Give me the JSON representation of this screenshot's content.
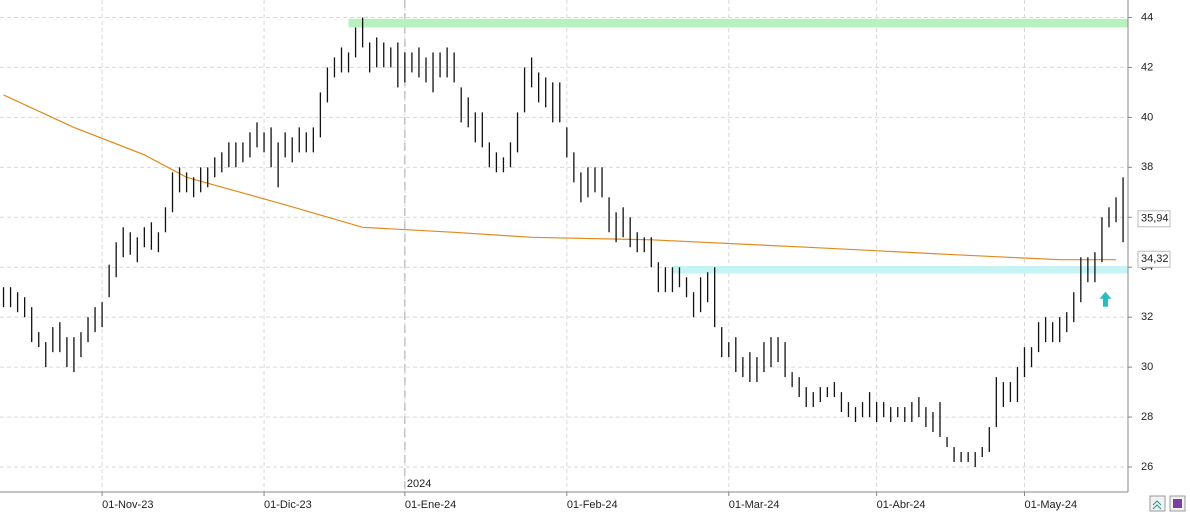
{
  "chart_data": {
    "type": "ohlc",
    "bars": [
      [
        33.2,
        32.4
      ],
      [
        33.2,
        32.4
      ],
      [
        33.0,
        32.2
      ],
      [
        32.8,
        32.0
      ],
      [
        32.4,
        31.0
      ],
      [
        31.4,
        30.8
      ],
      [
        31.0,
        30.0
      ],
      [
        31.6,
        30.6
      ],
      [
        31.8,
        30.6
      ],
      [
        31.2,
        30.0
      ],
      [
        31.2,
        29.8
      ],
      [
        31.4,
        30.4
      ],
      [
        32.0,
        31.0
      ],
      [
        32.4,
        31.4
      ],
      [
        32.6,
        31.6
      ],
      [
        34.1,
        32.8
      ],
      [
        35.0,
        33.6
      ],
      [
        35.6,
        34.4
      ],
      [
        35.4,
        34.5
      ],
      [
        35.2,
        34.2
      ],
      [
        35.6,
        34.8
      ],
      [
        35.8,
        34.7
      ],
      [
        35.4,
        34.6
      ],
      [
        36.4,
        35.4
      ],
      [
        37.8,
        36.2
      ],
      [
        38.0,
        37.0
      ],
      [
        37.8,
        37.0
      ],
      [
        37.6,
        36.8
      ],
      [
        38.0,
        37.0
      ],
      [
        38.0,
        37.2
      ],
      [
        38.4,
        37.6
      ],
      [
        38.6,
        37.8
      ],
      [
        39.0,
        38.0
      ],
      [
        39.0,
        38.0
      ],
      [
        39.0,
        38.2
      ],
      [
        39.4,
        38.4
      ],
      [
        39.8,
        38.8
      ],
      [
        39.4,
        38.6
      ],
      [
        39.6,
        38.0
      ],
      [
        39.0,
        37.2
      ],
      [
        39.4,
        38.4
      ],
      [
        39.2,
        38.2
      ],
      [
        39.6,
        38.6
      ],
      [
        39.4,
        38.6
      ],
      [
        39.6,
        38.6
      ],
      [
        41.0,
        39.2
      ],
      [
        42.0,
        40.6
      ],
      [
        42.4,
        41.6
      ],
      [
        42.8,
        41.8
      ],
      [
        42.6,
        41.8
      ],
      [
        43.6,
        42.4
      ],
      [
        44.0,
        42.8
      ],
      [
        43.0,
        41.8
      ],
      [
        43.2,
        42.0
      ],
      [
        43.0,
        42.0
      ],
      [
        42.8,
        42.0
      ],
      [
        43.0,
        41.2
      ],
      [
        42.6,
        41.4
      ],
      [
        42.6,
        41.8
      ],
      [
        42.8,
        41.6
      ],
      [
        42.4,
        41.4
      ],
      [
        42.6,
        41.0
      ],
      [
        42.6,
        41.6
      ],
      [
        42.8,
        41.6
      ],
      [
        42.6,
        41.4
      ],
      [
        41.2,
        39.8
      ],
      [
        40.8,
        39.6
      ],
      [
        40.2,
        39.0
      ],
      [
        40.2,
        38.8
      ],
      [
        39.0,
        38.0
      ],
      [
        38.6,
        37.8
      ],
      [
        38.4,
        37.8
      ],
      [
        39.0,
        38.0
      ],
      [
        40.2,
        38.6
      ],
      [
        42.0,
        40.2
      ],
      [
        42.4,
        41.2
      ],
      [
        41.8,
        40.6
      ],
      [
        41.6,
        40.4
      ],
      [
        41.4,
        39.8
      ],
      [
        41.4,
        39.8
      ],
      [
        39.6,
        38.4
      ],
      [
        38.6,
        37.4
      ],
      [
        37.8,
        36.6
      ],
      [
        38.0,
        36.8
      ],
      [
        38.0,
        37.0
      ],
      [
        38.0,
        36.8
      ],
      [
        36.8,
        35.4
      ],
      [
        36.2,
        35.0
      ],
      [
        36.4,
        35.2
      ],
      [
        36.0,
        34.8
      ],
      [
        35.4,
        34.6
      ],
      [
        35.2,
        34.6
      ],
      [
        35.2,
        34.0
      ],
      [
        34.2,
        33.0
      ],
      [
        34.0,
        33.0
      ],
      [
        34.0,
        33.0
      ],
      [
        34.0,
        33.2
      ],
      [
        33.6,
        32.8
      ],
      [
        33.0,
        32.0
      ],
      [
        33.6,
        32.2
      ],
      [
        33.8,
        32.6
      ],
      [
        34.0,
        31.6
      ],
      [
        31.6,
        30.4
      ],
      [
        31.0,
        30.4
      ],
      [
        31.2,
        29.8
      ],
      [
        30.4,
        29.6
      ],
      [
        30.6,
        29.4
      ],
      [
        30.4,
        29.4
      ],
      [
        31.0,
        29.8
      ],
      [
        31.2,
        30.0
      ],
      [
        31.2,
        30.2
      ],
      [
        31.0,
        29.6
      ],
      [
        29.8,
        29.2
      ],
      [
        29.6,
        28.8
      ],
      [
        29.2,
        28.4
      ],
      [
        29.0,
        28.4
      ],
      [
        29.2,
        28.6
      ],
      [
        29.2,
        28.8
      ],
      [
        29.4,
        28.8
      ],
      [
        29.0,
        28.2
      ],
      [
        28.6,
        28.0
      ],
      [
        28.4,
        27.8
      ],
      [
        28.6,
        28.0
      ],
      [
        29.0,
        28.0
      ],
      [
        28.6,
        27.8
      ],
      [
        28.6,
        28.0
      ],
      [
        28.4,
        27.8
      ],
      [
        28.4,
        28.0
      ],
      [
        28.4,
        27.8
      ],
      [
        28.6,
        27.8
      ],
      [
        28.8,
        28.0
      ],
      [
        28.4,
        27.6
      ],
      [
        28.2,
        27.4
      ],
      [
        28.6,
        27.2
      ],
      [
        27.2,
        26.8
      ],
      [
        26.8,
        26.2
      ],
      [
        26.6,
        26.2
      ],
      [
        26.6,
        26.2
      ],
      [
        26.6,
        26.0
      ],
      [
        26.8,
        26.4
      ],
      [
        27.6,
        26.6
      ],
      [
        29.6,
        27.6
      ],
      [
        29.4,
        28.4
      ],
      [
        29.4,
        28.6
      ],
      [
        30.0,
        28.6
      ],
      [
        30.8,
        29.6
      ],
      [
        30.8,
        30.0
      ],
      [
        31.8,
        30.6
      ],
      [
        32.0,
        31.0
      ],
      [
        31.8,
        31.0
      ],
      [
        32.0,
        31.0
      ],
      [
        32.2,
        31.4
      ],
      [
        33.0,
        31.8
      ],
      [
        34.4,
        32.6
      ],
      [
        34.4,
        33.4
      ],
      [
        34.6,
        33.4
      ],
      [
        36.0,
        34.2
      ],
      [
        36.4,
        35.6
      ],
      [
        36.8,
        35.8
      ],
      [
        37.6,
        35.0
      ]
    ],
    "bar_color": "#111111",
    "moving_average": {
      "color": "#e08a1e",
      "x": [
        0,
        10,
        20,
        26,
        40,
        51,
        64,
        75,
        92,
        114,
        135,
        150,
        158
      ],
      "values": [
        40.9,
        39.6,
        38.5,
        37.6,
        36.5,
        35.6,
        35.4,
        35.2,
        35.1,
        34.8,
        34.5,
        34.3,
        34.3
      ]
    },
    "bands": [
      {
        "from": 49,
        "to": 159.7,
        "ylim": [
          43.6,
          43.95
        ],
        "color": "#b9f0c0"
      },
      {
        "from": 95,
        "to": 159.7,
        "ylim": [
          33.75,
          34.05
        ],
        "color": "#c6f3f3"
      }
    ],
    "arrow": {
      "x": 156.5,
      "y": 32.7,
      "color": "#2bbdbd"
    },
    "price_labels": [
      {
        "value": 35.94,
        "label": "35,94"
      },
      {
        "value": 34.32,
        "label": "34,32"
      }
    ],
    "year_marker": {
      "x": 57,
      "label": "2024"
    },
    "xlim": [
      -0.5,
      159.7
    ],
    "xticks": [
      {
        "value": 14,
        "label": "01-Nov-23"
      },
      {
        "value": 37,
        "label": "01-Dic-23"
      },
      {
        "value": 57,
        "label": "01-Ene-24"
      },
      {
        "value": 80,
        "label": "01-Feb-24"
      },
      {
        "value": 103,
        "label": "01-Mar-24"
      },
      {
        "value": 124,
        "label": "01-Abr-24"
      },
      {
        "value": 145,
        "label": "01-May-24"
      }
    ],
    "ylim": [
      25.0,
      44.7
    ],
    "yticks": [
      26,
      28,
      30,
      32,
      34,
      36,
      38,
      40,
      42,
      44
    ],
    "grid": true
  }
}
